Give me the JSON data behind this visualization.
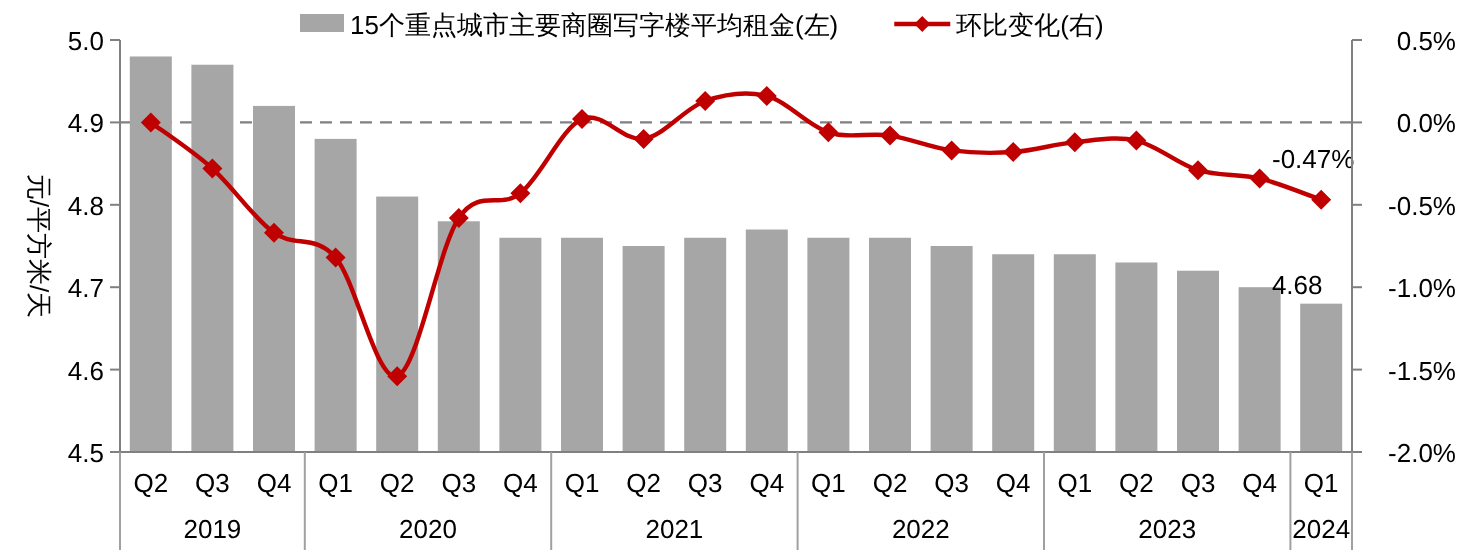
{
  "chart_data": {
    "type": "bar",
    "ylabel": "元/平方米/天",
    "categories": [
      "Q2",
      "Q3",
      "Q4",
      "Q1",
      "Q2",
      "Q3",
      "Q4",
      "Q1",
      "Q2",
      "Q3",
      "Q4",
      "Q1",
      "Q2",
      "Q3",
      "Q4",
      "Q1",
      "Q2",
      "Q3",
      "Q4",
      "Q1"
    ],
    "annotations": [
      "2019",
      "2020",
      "2021",
      "2022",
      "2023",
      "2024"
    ],
    "series": [
      {
        "name": "15个重点城市主要商圈写字楼平均租金(左)",
        "color": "#a6a6a6",
        "values": [
          4.98,
          4.97,
          4.92,
          4.88,
          4.81,
          4.78,
          4.76,
          4.76,
          4.75,
          4.76,
          4.77,
          4.76,
          4.76,
          4.75,
          4.74,
          4.74,
          4.73,
          4.72,
          4.7,
          4.68
        ],
        "value_labels": [
          null,
          null,
          null,
          null,
          null,
          null,
          null,
          null,
          null,
          null,
          null,
          null,
          null,
          null,
          null,
          null,
          null,
          null,
          null,
          "4.68"
        ]
      },
      {
        "name": "环比变化(右)",
        "type": "line",
        "axis": "y2",
        "color": "#c00000",
        "values": [
          0.0,
          -0.28,
          -0.67,
          -0.82,
          -1.54,
          -0.58,
          -0.43,
          0.02,
          -0.1,
          0.13,
          0.16,
          -0.06,
          -0.08,
          -0.17,
          -0.18,
          -0.12,
          -0.11,
          -0.29,
          -0.34,
          -0.47
        ],
        "value_labels": [
          null,
          null,
          null,
          null,
          null,
          null,
          null,
          null,
          null,
          null,
          null,
          null,
          null,
          null,
          null,
          null,
          null,
          null,
          null,
          "-0.47%"
        ]
      }
    ],
    "ylim": [
      4.5,
      5.0
    ],
    "yticks": [
      4.5,
      4.6,
      4.7,
      4.8,
      4.9,
      {
        "value": 5.0,
        "label": "5.0"
      }
    ],
    "y2lim": [
      -2.0,
      0.5
    ],
    "y2ticks": [
      {
        "value": -2.0,
        "label": "-2.0%"
      },
      {
        "value": -1.5,
        "label": "-1.5%"
      },
      {
        "value": -1.0,
        "label": "-1.0%"
      },
      {
        "value": -0.5,
        "label": "-0.5%"
      },
      {
        "value": 0.0,
        "label": "0.0%"
      },
      {
        "value": 0.5,
        "label": "0.5%"
      }
    ],
    "ref_lines": [
      {
        "axis": "y2",
        "value": 0.0,
        "color": "#808080",
        "line_style": "dashed"
      }
    ],
    "marker": "diamond",
    "legend": "top",
    "grid": false
  }
}
